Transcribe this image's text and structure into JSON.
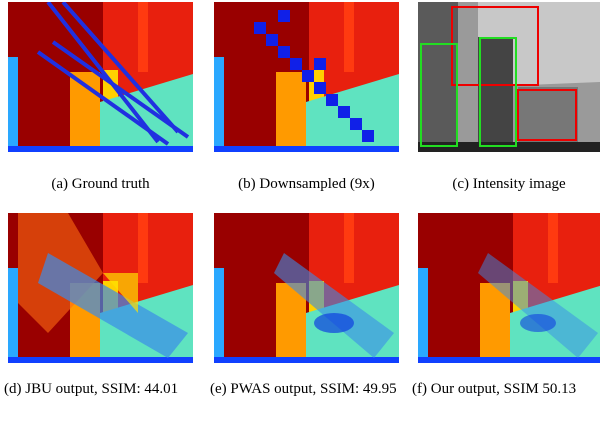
{
  "figure": {
    "captions": [
      "(a) Ground truth",
      "(b) Downsampled (9x)",
      "(c) Intensity image",
      "(d) JBU output, SSIM: 44.01",
      "(e) PWAS output, SSIM: 49.95",
      "(f) Our output, SSIM 50.13"
    ]
  }
}
